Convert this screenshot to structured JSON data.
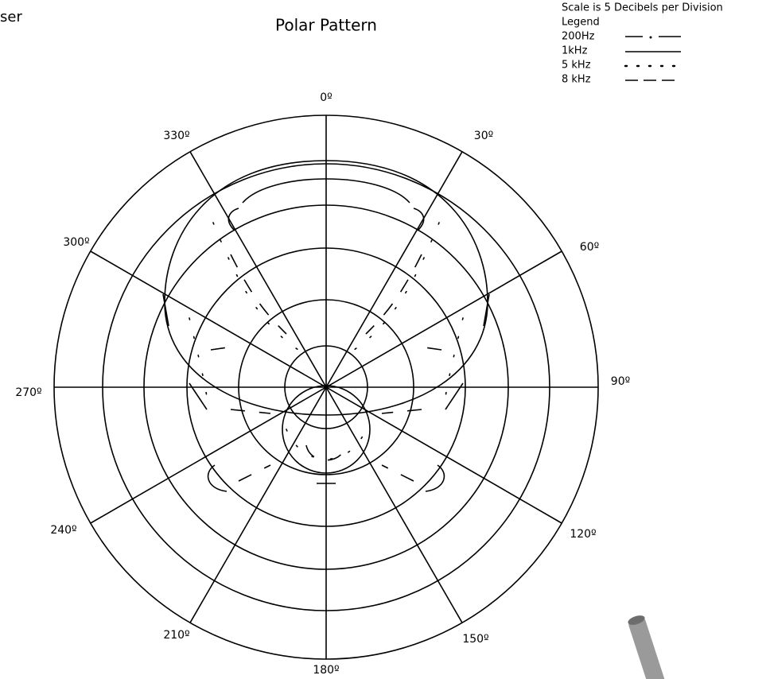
{
  "header_fragment": "ser",
  "title": "Polar Pattern",
  "scale_note": "Scale is 5 Decibels per Division",
  "legend": {
    "title": "Legend",
    "items": [
      "200Hz",
      "1kHz",
      "5 kHz",
      "8 kHz"
    ]
  },
  "angle_labels": [
    "0º",
    "30º",
    "60º",
    "90º",
    "120º",
    "150º",
    "180º",
    "210º",
    "240º",
    "270º",
    "300º",
    "330º"
  ]
}
